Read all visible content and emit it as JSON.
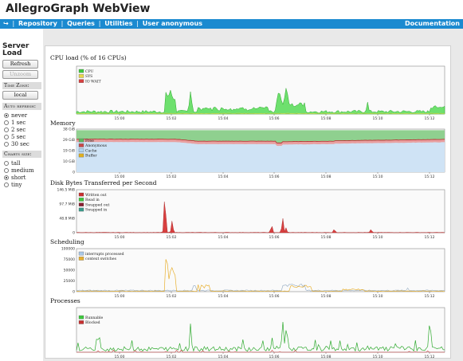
{
  "app": {
    "title": "AllegroGraph WebView"
  },
  "nav": {
    "home_icon": "home-arrow-icon",
    "items": [
      "Repository",
      "Queries",
      "Utilities",
      "User anonymous"
    ],
    "doc": "Documentation",
    "sep": "|",
    "color": "#1b8ad0"
  },
  "sidebar": {
    "title_line1": "Server",
    "title_line2": "Load",
    "refresh": "Refresh",
    "unzoom": "Unzoom",
    "timezone_label": "Time Zone:",
    "timezone_value": "local",
    "auto_label": "Auto refresh:",
    "auto_options": [
      "never",
      "1 sec",
      "2 sec",
      "5 sec",
      "30 sec"
    ],
    "auto_selected": 0,
    "size_label": "Charts size:",
    "size_options": [
      "tall",
      "medium",
      "short",
      "tiny"
    ],
    "size_selected": 2
  },
  "charts": [
    {
      "title": "CPU load (% of 16 CPUs)",
      "yticks": [],
      "legend": [
        {
          "label": "CPU",
          "color": "#3ec83e"
        },
        {
          "label": "SYS",
          "color": "#e8d84a"
        },
        {
          "label": "IO WAIT",
          "color": "#d84040"
        }
      ]
    },
    {
      "title": "Memory",
      "yticks": [
        "38 GiB",
        "29 GiB",
        "19 GiB",
        "10 GiB",
        "0"
      ],
      "legend": [
        {
          "label": "Free",
          "color": "#5cb85c"
        },
        {
          "label": "Anonymous",
          "color": "#c94848"
        },
        {
          "label": "Cache",
          "color": "#b0d4f0"
        },
        {
          "label": "Buffer",
          "color": "#e0b020"
        }
      ]
    },
    {
      "title": "Disk Bytes Transferred per Second",
      "yticks": [
        "146.5 MiB",
        "97.7 MiB",
        "48.8 MiB",
        "0"
      ],
      "legend": [
        {
          "label": "Written out",
          "color": "#c83030"
        },
        {
          "label": "Read in",
          "color": "#3ec83e"
        },
        {
          "label": "Swapped out",
          "color": "#8a2030"
        },
        {
          "label": "Swapped in",
          "color": "#3a9a8a"
        }
      ]
    },
    {
      "title": "Scheduling",
      "yticks": [
        "100000",
        "75000",
        "50000",
        "25000",
        "0"
      ],
      "legend": [
        {
          "label": "interrupts processed",
          "color": "#a8c8e8"
        },
        {
          "label": "context switches",
          "color": "#e8b030"
        }
      ]
    },
    {
      "title": "Processes",
      "yticks": [],
      "legend": [
        {
          "label": "Runnable",
          "color": "#3ec83e"
        },
        {
          "label": "Blocked",
          "color": "#c83030"
        }
      ]
    }
  ],
  "xticks": [
    "15:00",
    "15:02",
    "15:04",
    "15:06",
    "15:08",
    "15:10",
    "15:12"
  ]
}
